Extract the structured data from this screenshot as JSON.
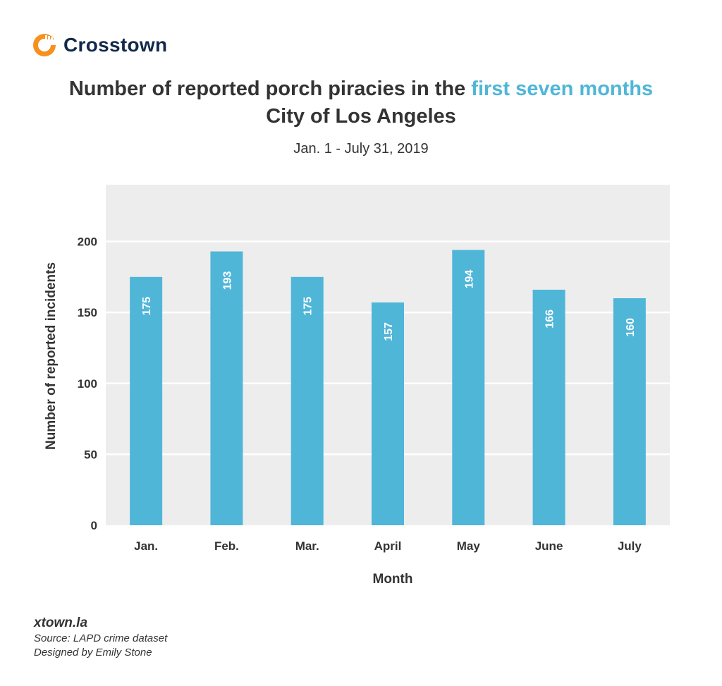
{
  "brand": {
    "name": "Crosstown",
    "logo_icon": "crosstown-logo-icon",
    "accent": "#f6911e"
  },
  "header": {
    "title_part1": "Number of reported porch piracies in the ",
    "title_highlight": "first seven months",
    "title_line2": "City of Los Angeles",
    "subtitle": "Jan. 1 - July 31, 2019"
  },
  "chart_data": {
    "type": "bar",
    "categories": [
      "Jan.",
      "Feb.",
      "Mar.",
      "April",
      "May",
      "June",
      "July"
    ],
    "values": [
      175,
      193,
      175,
      157,
      194,
      166,
      160
    ],
    "xlabel": "Month",
    "ylabel": "Number of reported incidents",
    "ylim": [
      0,
      240
    ],
    "yticks": [
      0,
      50,
      100,
      150,
      200
    ],
    "grid": true,
    "bar_color": "#4fb6d8",
    "plot_background": "#ededed",
    "highlight_color": "#4fb6d8"
  },
  "footer": {
    "site": "xtown.la",
    "source": "Source: LAPD crime dataset",
    "designer": "Designed by Emily Stone"
  }
}
